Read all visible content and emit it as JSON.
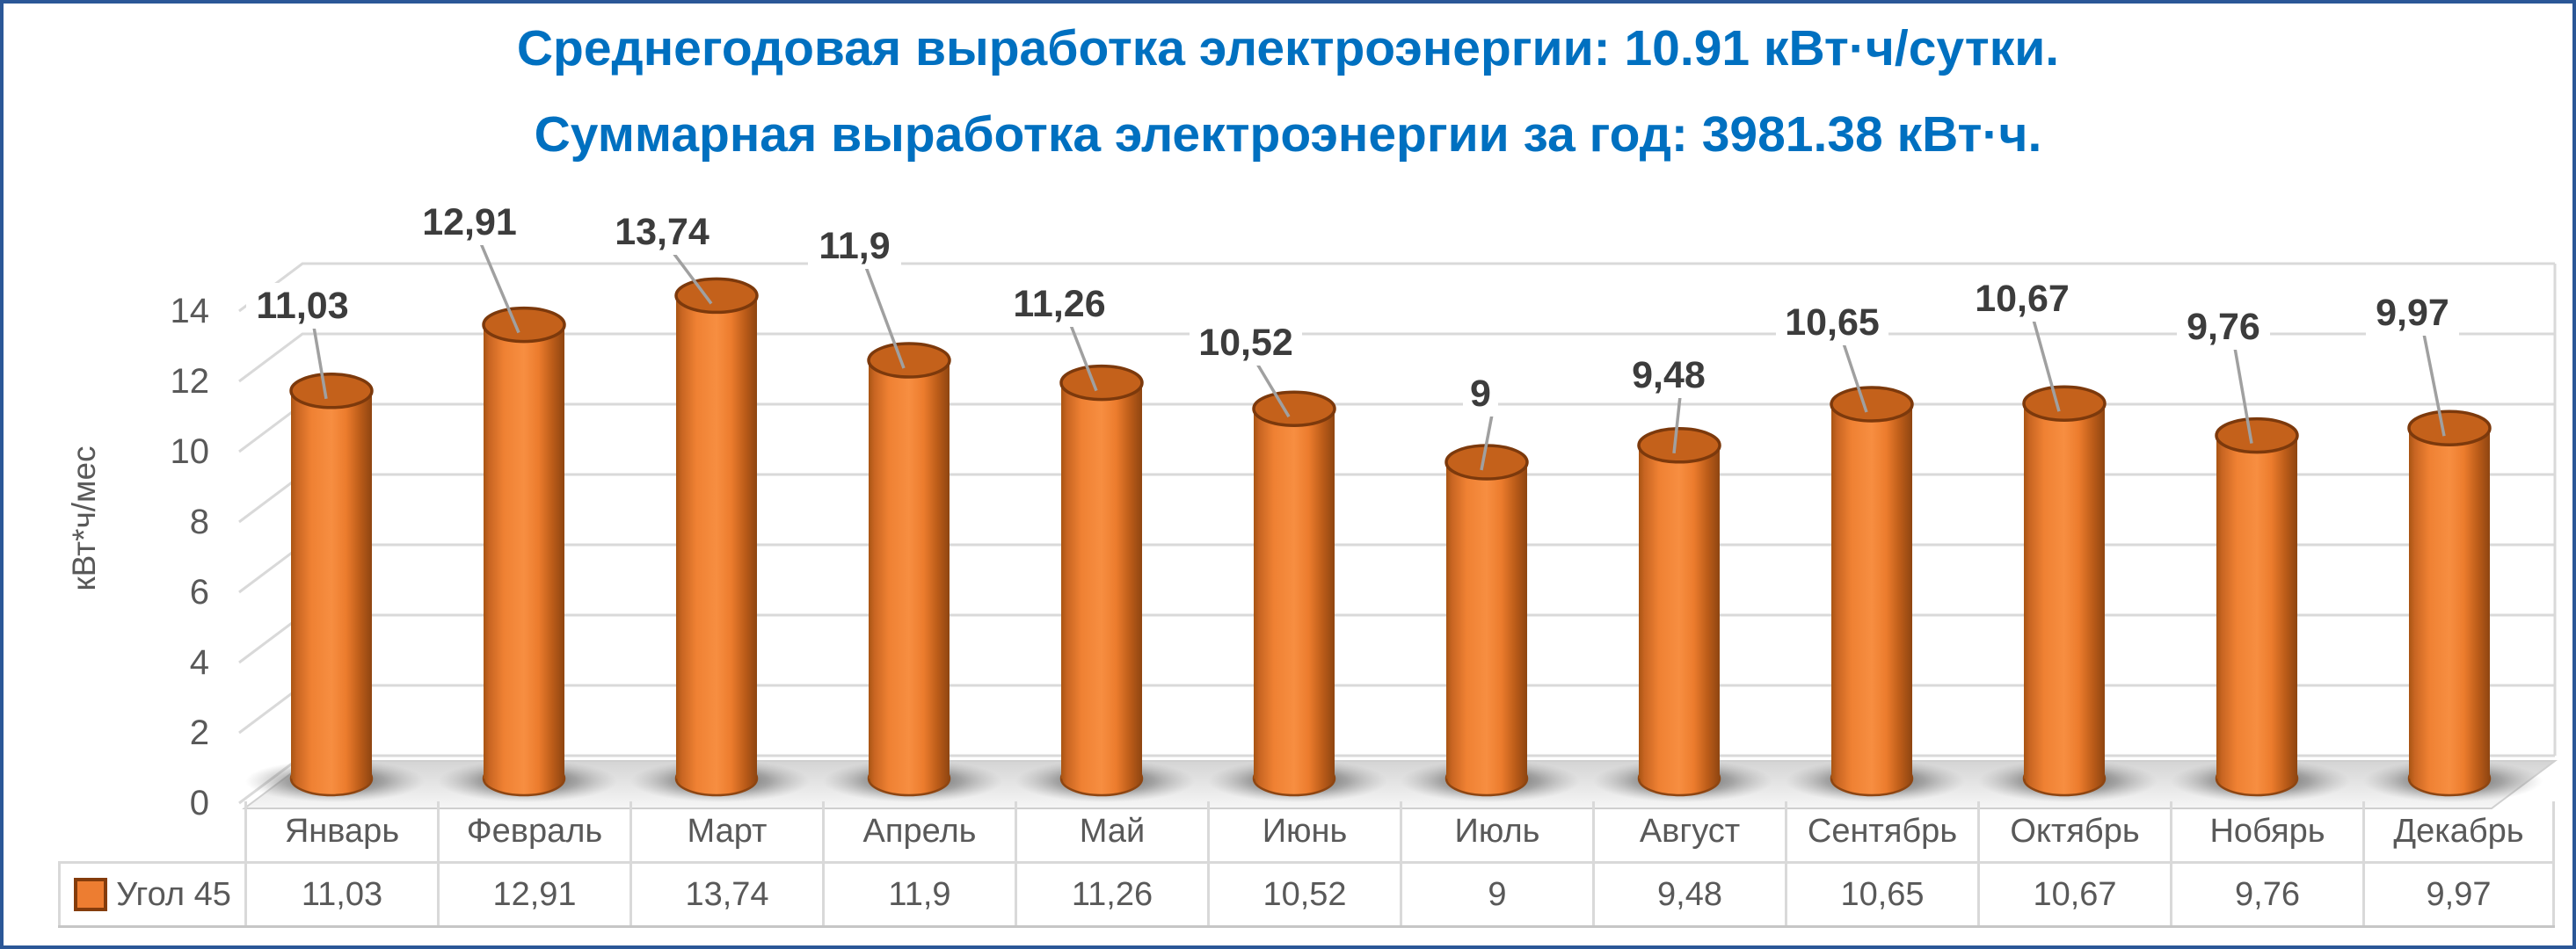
{
  "title": {
    "line1": {
      "prefix": "Среднегодовая выработка электроэнергии: ",
      "value": "10.91",
      "suffix": " кВт·ч/сутки."
    },
    "line2": {
      "prefix": "Суммарная выработка электроэнергии за год: ",
      "value": "3981.38",
      "suffix": " кВт·ч."
    },
    "color": "#0070C0"
  },
  "colors": {
    "frame_border": "#2B5797",
    "bar_orange": "#ED7D31",
    "bar_top_cap": "#C4611B",
    "bar_rim": "#7C390C",
    "bar_edge_dark": "#8E4511",
    "gridline": "#D9D9D9",
    "leader_line": "#A0A0A0",
    "data_label_text": "#3C3C3C",
    "axis_text": "#595959",
    "table_border": "#D9D9D9"
  },
  "chart_data": {
    "type": "bar",
    "subtype": "3d-cylinder",
    "title": "",
    "xlabel": "",
    "ylabel": "кВт*ч/мес",
    "ylim": [
      0,
      14
    ],
    "ytick_step": 2,
    "yticks": [
      0,
      2,
      4,
      6,
      8,
      10,
      12,
      14
    ],
    "grid": true,
    "legend_position": "bottom-left",
    "categories": [
      "Январь",
      "Февраль",
      "Март",
      "Апрель",
      "Май",
      "Июнь",
      "Июль",
      "Август",
      "Сентябрь",
      "Октябрь",
      "Нобярь",
      "Декабрь"
    ],
    "series": [
      {
        "name": "Угол 45",
        "color": "#ED7D31",
        "values": [
          11.03,
          12.91,
          13.74,
          11.9,
          11.26,
          10.52,
          9,
          9.48,
          10.65,
          10.67,
          9.76,
          9.97
        ],
        "value_labels": [
          "11,03",
          "12,91",
          "13,74",
          "11,9",
          "11,26",
          "10,52",
          "9",
          "9,48",
          "10,65",
          "10,67",
          "9,76",
          "9,97"
        ]
      }
    ],
    "label_positions_hint": [
      [
        -33,
        348
      ],
      [
        -62,
        253
      ],
      [
        -62,
        264
      ],
      [
        -62,
        280
      ],
      [
        -48,
        346
      ],
      [
        -55,
        390
      ],
      [
        -7,
        448
      ],
      [
        -12,
        427
      ],
      [
        -45,
        367
      ],
      [
        -48,
        340
      ],
      [
        -38,
        372
      ],
      [
        -42,
        356
      ]
    ]
  }
}
